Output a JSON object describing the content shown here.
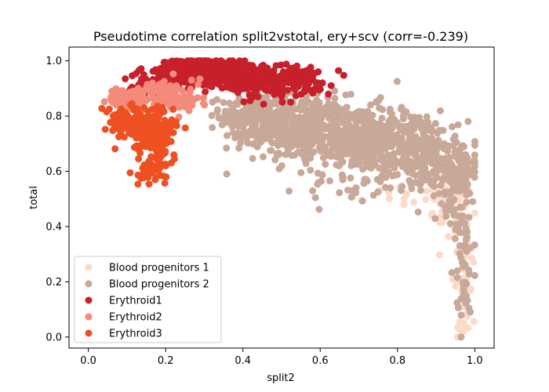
{
  "chart_data": {
    "type": "scatter",
    "title": "Pseudotime correlation split2vstotal, ery+scv (corr=-0.239)",
    "xlabel": "split2",
    "ylabel": "total",
    "xlim": [
      -0.05,
      1.05
    ],
    "ylim": [
      -0.04,
      1.05
    ],
    "xticks": [
      "0.0",
      "0.2",
      "0.4",
      "0.6",
      "0.8",
      "1.0"
    ],
    "yticks": [
      "0.0",
      "0.2",
      "0.4",
      "0.6",
      "0.8",
      "1.0"
    ],
    "grid": false,
    "legend_position": "lower-left",
    "series": [
      {
        "name": "Blood progenitors 1",
        "color": "#fcd9c8",
        "clusters": [
          {
            "cx": 0.94,
            "cy": 0.5,
            "sx": 0.035,
            "sy": 0.07,
            "n": 70
          },
          {
            "cx": 0.97,
            "cy": 0.25,
            "sx": 0.015,
            "sy": 0.1,
            "n": 35
          },
          {
            "cx": 0.97,
            "cy": 0.05,
            "sx": 0.012,
            "sy": 0.04,
            "n": 15
          },
          {
            "cx": 0.78,
            "cy": 0.5,
            "sx": 0.05,
            "sy": 0.04,
            "n": 10
          }
        ]
      },
      {
        "name": "Blood progenitors 2",
        "color": "#c8a898",
        "clusters": [
          {
            "cx": 0.42,
            "cy": 0.8,
            "sx": 0.04,
            "sy": 0.05,
            "n": 180
          },
          {
            "cx": 0.55,
            "cy": 0.76,
            "sx": 0.06,
            "sy": 0.06,
            "n": 320
          },
          {
            "cx": 0.7,
            "cy": 0.72,
            "sx": 0.06,
            "sy": 0.06,
            "n": 300
          },
          {
            "cx": 0.84,
            "cy": 0.68,
            "sx": 0.05,
            "sy": 0.07,
            "n": 260
          },
          {
            "cx": 0.95,
            "cy": 0.6,
            "sx": 0.03,
            "sy": 0.07,
            "n": 160
          },
          {
            "cx": 0.97,
            "cy": 0.35,
            "sx": 0.015,
            "sy": 0.1,
            "n": 50
          },
          {
            "cx": 0.97,
            "cy": 0.12,
            "sx": 0.012,
            "sy": 0.06,
            "n": 15
          },
          {
            "cx": 0.68,
            "cy": 0.55,
            "sx": 0.06,
            "sy": 0.05,
            "n": 30
          }
        ]
      },
      {
        "name": "Erythroid1",
        "color": "#c8202a",
        "clusters": [
          {
            "cx": 0.24,
            "cy": 0.96,
            "sx": 0.03,
            "sy": 0.025,
            "n": 200
          },
          {
            "cx": 0.34,
            "cy": 0.96,
            "sx": 0.04,
            "sy": 0.025,
            "n": 220
          },
          {
            "cx": 0.45,
            "cy": 0.93,
            "sx": 0.04,
            "sy": 0.03,
            "n": 160
          },
          {
            "cx": 0.55,
            "cy": 0.93,
            "sx": 0.04,
            "sy": 0.03,
            "n": 80
          },
          {
            "cx": 0.15,
            "cy": 0.9,
            "sx": 0.03,
            "sy": 0.03,
            "n": 50
          }
        ]
      },
      {
        "name": "Erythroid2",
        "color": "#f38a7a",
        "clusters": [
          {
            "cx": 0.1,
            "cy": 0.86,
            "sx": 0.025,
            "sy": 0.02,
            "n": 70
          },
          {
            "cx": 0.18,
            "cy": 0.88,
            "sx": 0.03,
            "sy": 0.025,
            "n": 90
          },
          {
            "cx": 0.25,
            "cy": 0.86,
            "sx": 0.025,
            "sy": 0.025,
            "n": 35
          }
        ]
      },
      {
        "name": "Erythroid3",
        "color": "#ef5022",
        "clusters": [
          {
            "cx": 0.1,
            "cy": 0.78,
            "sx": 0.03,
            "sy": 0.03,
            "n": 90
          },
          {
            "cx": 0.16,
            "cy": 0.75,
            "sx": 0.03,
            "sy": 0.04,
            "n": 140
          },
          {
            "cx": 0.19,
            "cy": 0.68,
            "sx": 0.015,
            "sy": 0.05,
            "n": 50
          },
          {
            "cx": 0.15,
            "cy": 0.6,
            "sx": 0.02,
            "sy": 0.025,
            "n": 25
          }
        ]
      }
    ]
  }
}
